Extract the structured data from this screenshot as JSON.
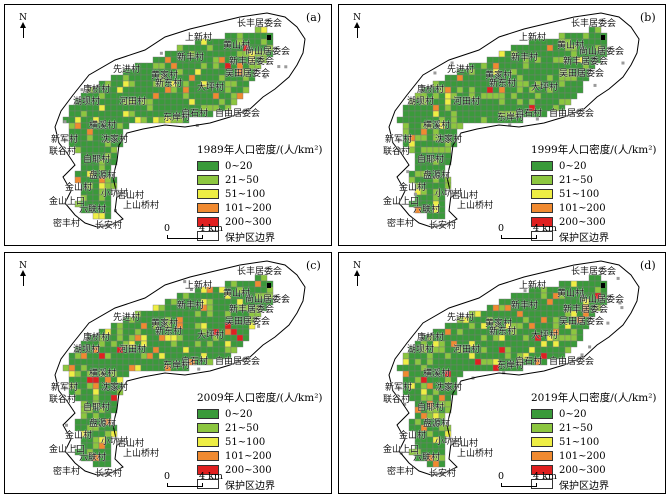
{
  "north_label": "N",
  "scale": {
    "start": "0",
    "end": "4 km"
  },
  "legend": {
    "title_prefix_suffix": "年人口密度/(人/km²)",
    "classes": [
      {
        "label": "0~20",
        "color": "#3a9a3a"
      },
      {
        "label": "21~50",
        "color": "#8cc63f"
      },
      {
        "label": "51~100",
        "color": "#eeee44"
      },
      {
        "label": "101~200",
        "color": "#f08a30"
      },
      {
        "label": "200~300",
        "color": "#e02020"
      }
    ],
    "boundary_label": "保护区边界"
  },
  "panels": [
    {
      "tag": "(a)",
      "title": "1989年人口密度/(人/km²)"
    },
    {
      "tag": "(b)",
      "title": "1999年人口密度/(人/km²)"
    },
    {
      "tag": "(c)",
      "title": "2009年人口密度/(人/km²)"
    },
    {
      "tag": "(d)",
      "title": "2019年人口密度/(人/km²)"
    }
  ],
  "villages": [
    "长丰居委会",
    "上新村",
    "黄山村",
    "新丰村",
    "尚山居委会",
    "新丰居委会",
    "吴田居委会",
    "先进村",
    "黄家村",
    "新东村",
    "康桥村",
    "大坪村",
    "湖坝村",
    "河田村",
    "自石村",
    "东岸村",
    "自由居委会",
    "横溪村",
    "新军村",
    "沈家村",
    "联谷村",
    "自耶村",
    "盘源村",
    "金山村",
    "小坑村",
    "岩山村",
    "金山上口",
    "六联村",
    "上山桥村",
    "密丰村",
    "长安村"
  ]
}
